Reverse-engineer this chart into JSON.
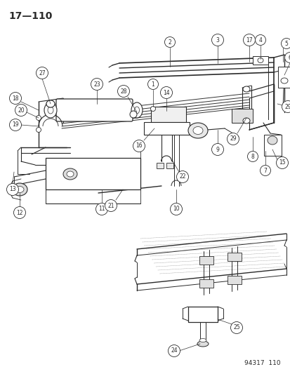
{
  "title": "17—110",
  "diagram_ref": "94317  110",
  "bg_color": "#ffffff",
  "line_color": "#2a2a2a",
  "fig_width": 4.14,
  "fig_height": 5.33,
  "dpi": 100,
  "title_fontsize": 10,
  "ref_fontsize": 6.5,
  "callout_fontsize": 5.5,
  "callout_r": 0.018
}
